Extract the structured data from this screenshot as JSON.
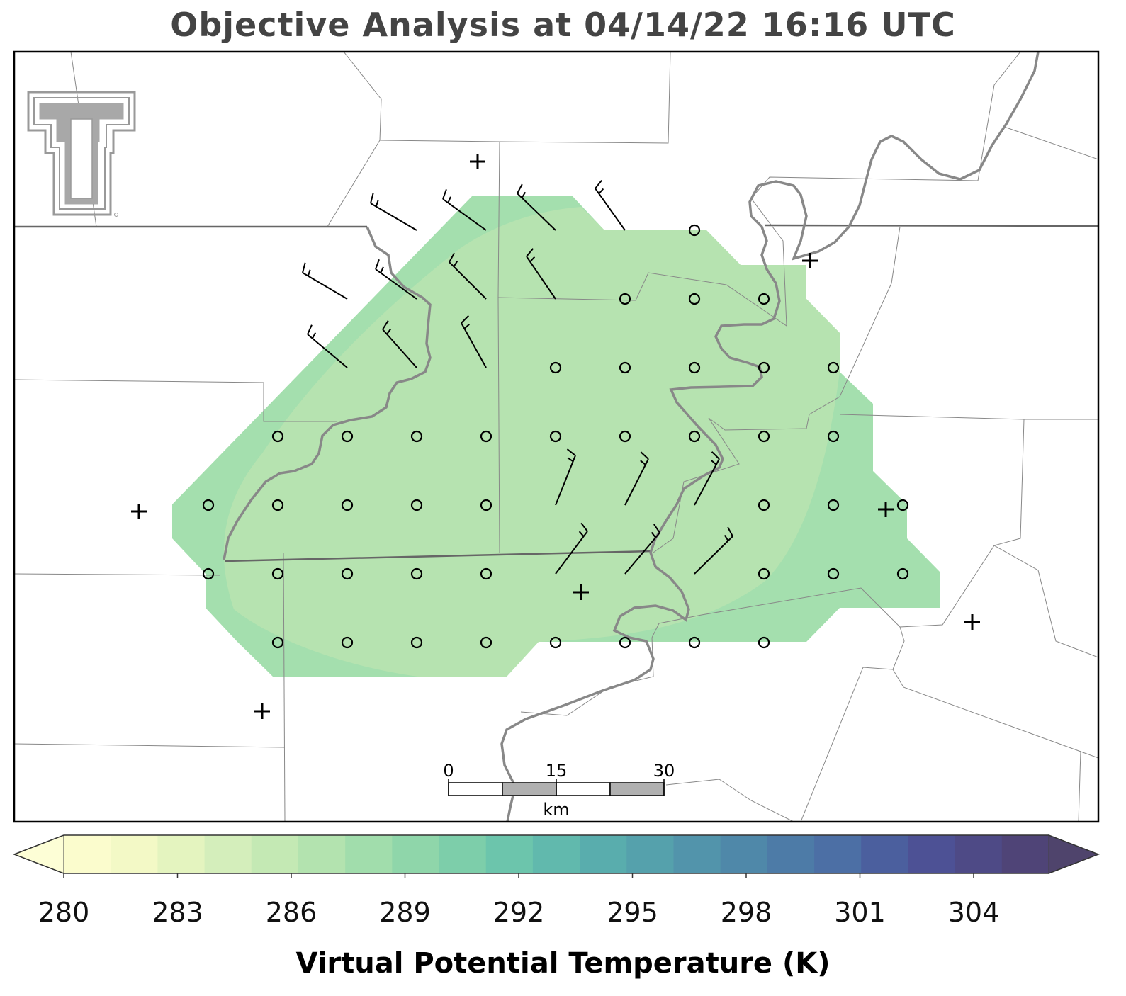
{
  "title": "Objective Analysis at 04/14/22 16:16 UTC",
  "map": {
    "analysis_fill_colors": {
      "outer": "#a4dfae",
      "inner": "#b6e3b0"
    },
    "boundary_color": "#888888",
    "river_color": "#888888",
    "logo_icon": "texas-tech-double-t-logo",
    "station_marker": "plus-icon",
    "grid_marker": "open-circle-icon",
    "wind_marker": "wind-barb-icon"
  },
  "scale_bar": {
    "labels": [
      "0",
      "15",
      "30"
    ],
    "unit": "km"
  },
  "colorbar": {
    "label": "Virtual Potential Temperature (K)",
    "ticks": [
      "280",
      "283",
      "286",
      "289",
      "292",
      "295",
      "298",
      "301",
      "304"
    ],
    "colors": [
      "#fbfccd",
      "#f3f9c6",
      "#e4f4bf",
      "#d4eebb",
      "#c4e9b4",
      "#b3e3af",
      "#a1ddac",
      "#8fd6aa",
      "#7dceaa",
      "#6cc5ac",
      "#61b9ad",
      "#59adad",
      "#55a1ac",
      "#5294ab",
      "#4f88a9",
      "#4d7ba7",
      "#4c6fa5",
      "#4b5f9e",
      "#4d5195",
      "#4e4a86",
      "#4f4477"
    ],
    "extend": "both"
  }
}
